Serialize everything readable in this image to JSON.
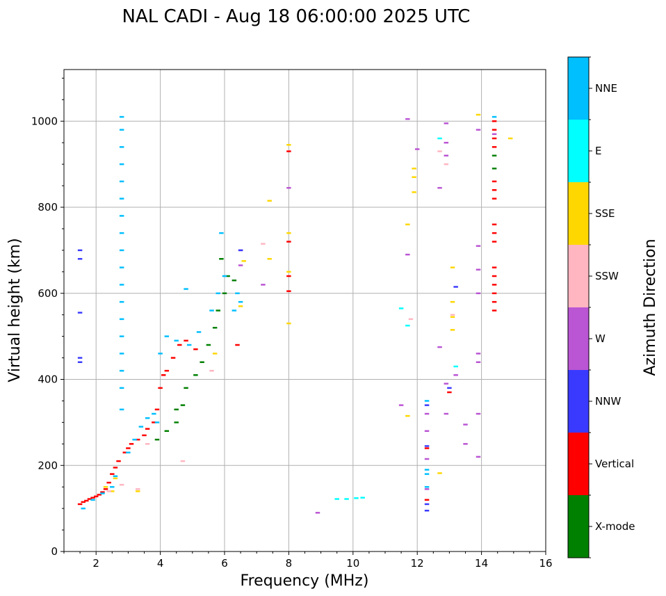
{
  "chart_data": {
    "type": "scatter",
    "title": "NAL CADI - Aug 18 06:00:00 2025 UTC",
    "xlabel": "Frequency (MHz)",
    "ylabel": "Virtual height (km)",
    "xlim": [
      1,
      16
    ],
    "ylim": [
      0,
      1120
    ],
    "xticks": [
      2,
      4,
      6,
      8,
      10,
      12,
      14,
      16
    ],
    "yticks": [
      0,
      200,
      400,
      600,
      800,
      1000
    ],
    "grid": true,
    "colorbar": {
      "label": "Azimuth Direction",
      "categories": [
        {
          "name": "NNE",
          "color": "#00bfff"
        },
        {
          "name": "E",
          "color": "#00ffff"
        },
        {
          "name": "SSE",
          "color": "#ffd700"
        },
        {
          "name": "SSW",
          "color": "#ffb6c1"
        },
        {
          "name": "W",
          "color": "#ba55d3"
        },
        {
          "name": "NNW",
          "color": "#3a3aff"
        },
        {
          "name": "Vertical",
          "color": "#ff0000"
        },
        {
          "name": "X-mode",
          "color": "#008000"
        }
      ]
    },
    "series": [
      {
        "name": "Vertical",
        "points": [
          [
            1.5,
            110
          ],
          [
            1.6,
            115
          ],
          [
            1.7,
            118
          ],
          [
            1.8,
            122
          ],
          [
            1.9,
            125
          ],
          [
            2.0,
            128
          ],
          [
            2.1,
            132
          ],
          [
            2.2,
            138
          ],
          [
            2.3,
            145
          ],
          [
            2.4,
            160
          ],
          [
            2.5,
            180
          ],
          [
            2.6,
            195
          ],
          [
            2.7,
            210
          ],
          [
            2.9,
            230
          ],
          [
            3.0,
            240
          ],
          [
            3.1,
            250
          ],
          [
            3.3,
            260
          ],
          [
            3.5,
            270
          ],
          [
            3.6,
            285
          ],
          [
            3.8,
            300
          ],
          [
            3.9,
            330
          ],
          [
            4.0,
            380
          ],
          [
            4.1,
            410
          ],
          [
            4.2,
            420
          ],
          [
            4.4,
            450
          ],
          [
            4.6,
            480
          ],
          [
            4.8,
            490
          ],
          [
            5.1,
            470
          ],
          [
            6.4,
            480
          ],
          [
            8.0,
            930
          ],
          [
            8.0,
            720
          ],
          [
            8.0,
            640
          ],
          [
            8.0,
            605
          ],
          [
            12.3,
            240
          ],
          [
            12.3,
            120
          ],
          [
            13.0,
            370
          ],
          [
            14.4,
            1000
          ],
          [
            14.4,
            980
          ],
          [
            14.4,
            960
          ],
          [
            14.4,
            940
          ],
          [
            14.4,
            860
          ],
          [
            14.4,
            840
          ],
          [
            14.4,
            820
          ],
          [
            14.4,
            760
          ],
          [
            14.4,
            740
          ],
          [
            14.4,
            720
          ],
          [
            14.4,
            660
          ],
          [
            14.4,
            640
          ],
          [
            14.4,
            620
          ],
          [
            14.4,
            600
          ],
          [
            14.4,
            580
          ],
          [
            14.4,
            560
          ]
        ]
      },
      {
        "name": "X-mode",
        "points": [
          [
            3.9,
            260
          ],
          [
            4.2,
            280
          ],
          [
            4.5,
            300
          ],
          [
            4.5,
            330
          ],
          [
            4.8,
            380
          ],
          [
            5.1,
            410
          ],
          [
            5.3,
            440
          ],
          [
            5.5,
            480
          ],
          [
            5.7,
            520
          ],
          [
            5.8,
            560
          ],
          [
            6.0,
            600
          ],
          [
            6.1,
            640
          ],
          [
            6.3,
            630
          ],
          [
            5.9,
            680
          ],
          [
            4.7,
            340
          ],
          [
            14.4,
            920
          ],
          [
            14.4,
            890
          ]
        ]
      },
      {
        "name": "NNE",
        "points": [
          [
            1.6,
            100
          ],
          [
            1.9,
            120
          ],
          [
            2.2,
            135
          ],
          [
            2.5,
            150
          ],
          [
            2.6,
            175
          ],
          [
            3.0,
            230
          ],
          [
            3.2,
            260
          ],
          [
            3.4,
            290
          ],
          [
            3.6,
            310
          ],
          [
            3.8,
            320
          ],
          [
            3.9,
            300
          ],
          [
            4.0,
            460
          ],
          [
            4.2,
            500
          ],
          [
            4.5,
            490
          ],
          [
            4.9,
            480
          ],
          [
            5.2,
            510
          ],
          [
            5.6,
            560
          ],
          [
            5.8,
            600
          ],
          [
            6.0,
            640
          ],
          [
            6.3,
            560
          ],
          [
            6.4,
            600
          ],
          [
            6.5,
            580
          ],
          [
            5.9,
            740
          ],
          [
            4.8,
            610
          ],
          [
            2.8,
            1010
          ],
          [
            2.8,
            980
          ],
          [
            2.8,
            940
          ],
          [
            2.8,
            900
          ],
          [
            2.8,
            860
          ],
          [
            2.8,
            820
          ],
          [
            2.8,
            780
          ],
          [
            2.8,
            740
          ],
          [
            2.8,
            700
          ],
          [
            2.8,
            660
          ],
          [
            2.8,
            620
          ],
          [
            2.8,
            580
          ],
          [
            2.8,
            540
          ],
          [
            2.8,
            500
          ],
          [
            2.8,
            460
          ],
          [
            2.8,
            420
          ],
          [
            2.8,
            380
          ],
          [
            2.8,
            330
          ],
          [
            12.3,
            350
          ],
          [
            12.3,
            190
          ],
          [
            12.3,
            180
          ],
          [
            12.3,
            150
          ],
          [
            14.4,
            1010
          ]
        ]
      },
      {
        "name": "E",
        "points": [
          [
            9.5,
            122
          ],
          [
            9.8,
            122
          ],
          [
            10.1,
            124
          ],
          [
            10.3,
            125
          ],
          [
            11.5,
            565
          ],
          [
            11.7,
            525
          ],
          [
            12.7,
            960
          ],
          [
            13.2,
            430
          ]
        ]
      },
      {
        "name": "SSE",
        "points": [
          [
            2.3,
            150
          ],
          [
            2.5,
            140
          ],
          [
            2.6,
            170
          ],
          [
            3.3,
            140
          ],
          [
            5.7,
            460
          ],
          [
            6.5,
            570
          ],
          [
            6.6,
            675
          ],
          [
            7.4,
            680
          ],
          [
            7.4,
            815
          ],
          [
            8.0,
            945
          ],
          [
            8.0,
            740
          ],
          [
            8.0,
            650
          ],
          [
            8.0,
            530
          ],
          [
            11.7,
            760
          ],
          [
            11.7,
            315
          ],
          [
            11.9,
            890
          ],
          [
            11.9,
            870
          ],
          [
            11.9,
            835
          ],
          [
            12.7,
            182
          ],
          [
            13.1,
            660
          ],
          [
            13.1,
            580
          ],
          [
            13.1,
            545
          ],
          [
            13.1,
            515
          ],
          [
            13.9,
            1015
          ],
          [
            14.9,
            960
          ]
        ]
      },
      {
        "name": "SSW",
        "points": [
          [
            2.4,
            140
          ],
          [
            2.8,
            155
          ],
          [
            3.3,
            145
          ],
          [
            3.6,
            250
          ],
          [
            5.6,
            420
          ],
          [
            4.7,
            210
          ],
          [
            7.2,
            715
          ],
          [
            11.8,
            540
          ],
          [
            12.7,
            930
          ],
          [
            12.9,
            900
          ],
          [
            13.1,
            550
          ]
        ]
      },
      {
        "name": "W",
        "points": [
          [
            6.5,
            665
          ],
          [
            7.2,
            620
          ],
          [
            8.0,
            845
          ],
          [
            8.9,
            90
          ],
          [
            11.7,
            1005
          ],
          [
            11.7,
            690
          ],
          [
            11.5,
            340
          ],
          [
            12.0,
            935
          ],
          [
            12.3,
            320
          ],
          [
            12.3,
            280
          ],
          [
            12.3,
            215
          ],
          [
            12.3,
            145
          ],
          [
            12.7,
            845
          ],
          [
            12.7,
            475
          ],
          [
            12.9,
            995
          ],
          [
            12.9,
            950
          ],
          [
            12.9,
            920
          ],
          [
            12.9,
            390
          ],
          [
            12.9,
            320
          ],
          [
            13.2,
            410
          ],
          [
            13.5,
            295
          ],
          [
            13.5,
            250
          ],
          [
            13.9,
            980
          ],
          [
            13.9,
            710
          ],
          [
            13.9,
            655
          ],
          [
            13.9,
            600
          ],
          [
            13.9,
            460
          ],
          [
            13.9,
            440
          ],
          [
            13.9,
            320
          ],
          [
            13.9,
            220
          ],
          [
            14.4,
            970
          ],
          [
            6.5,
            700
          ]
        ]
      },
      {
        "name": "NNW",
        "points": [
          [
            1.5,
            700
          ],
          [
            1.5,
            680
          ],
          [
            1.5,
            555
          ],
          [
            1.5,
            450
          ],
          [
            1.5,
            440
          ],
          [
            12.3,
            340
          ],
          [
            12.3,
            245
          ],
          [
            12.3,
            110
          ],
          [
            12.3,
            95
          ],
          [
            13.0,
            380
          ],
          [
            13.2,
            615
          ],
          [
            6.5,
            700
          ]
        ]
      }
    ]
  }
}
